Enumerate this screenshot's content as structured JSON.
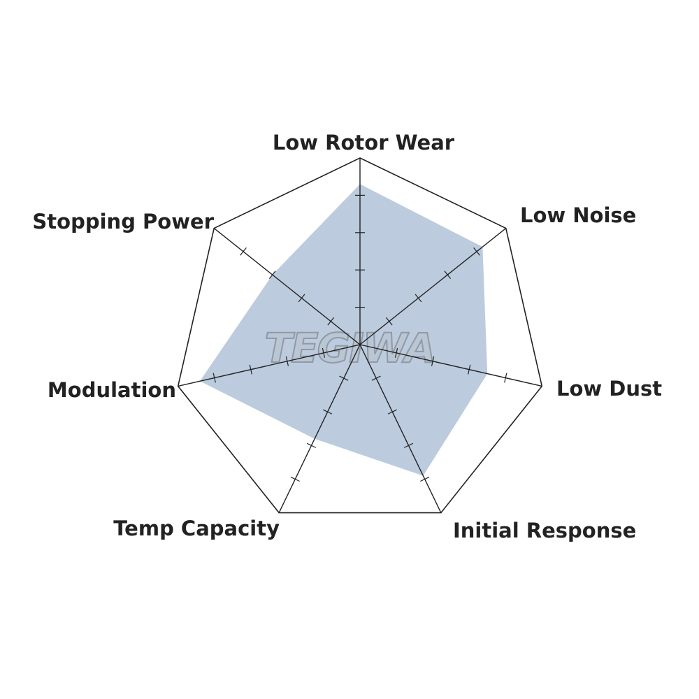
{
  "chart_data": {
    "type": "radar",
    "axes": [
      "Low Rotor Wear",
      "Low Noise",
      "Low Dust",
      "Initial Response",
      "Temp Capacity",
      "Modulation",
      "Stopping Power"
    ],
    "values": [
      4.3,
      4.2,
      3.5,
      3.9,
      2.8,
      4.4,
      3.0
    ],
    "range": [
      0,
      5
    ],
    "tick_count": 5,
    "fill_color": "#bccbdd",
    "line_color": "#222222"
  },
  "watermark": "TEGIWA"
}
